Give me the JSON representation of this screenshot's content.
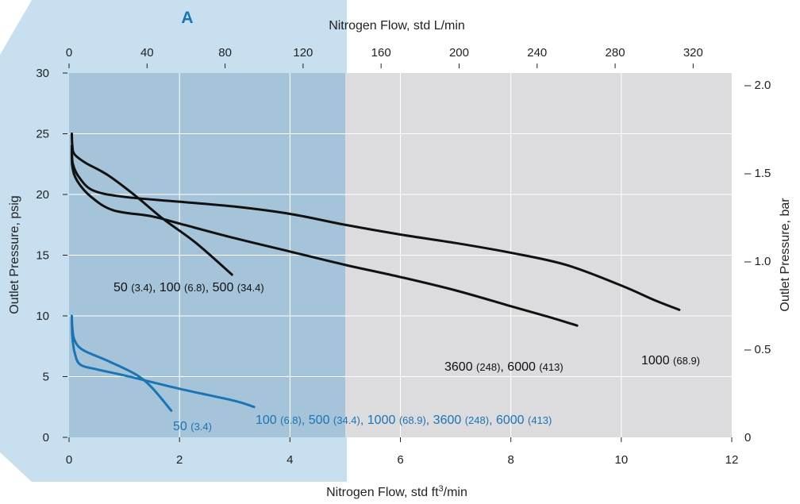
{
  "chart_data": {
    "type": "line",
    "region_label": "A",
    "x_top": {
      "label": "Nitrogen Flow, std L/min",
      "ticks": [
        "0",
        "40",
        "80",
        "120",
        "160",
        "200",
        "240",
        "280",
        "320"
      ],
      "tick_values_ft3": [
        0,
        1.4126,
        2.8252,
        4.2378,
        5.6504,
        7.063,
        8.4756,
        9.8882,
        11.3008
      ]
    },
    "x_bottom": {
      "label_prefix": "Nitrogen Flow, std ft",
      "label_sup": "3",
      "label_suffix": "/min",
      "ticks": [
        "0",
        "2",
        "4",
        "6",
        "8",
        "10",
        "12"
      ],
      "tick_values": [
        0,
        2,
        4,
        6,
        8,
        10,
        12
      ],
      "range": [
        0,
        12
      ]
    },
    "y_left": {
      "label": "Outlet Pressure, psig",
      "ticks": [
        "0",
        "5",
        "10",
        "15",
        "20",
        "25",
        "30"
      ],
      "tick_values": [
        0,
        5,
        10,
        15,
        20,
        25,
        30
      ],
      "range": [
        0,
        30
      ]
    },
    "y_right": {
      "label": "Outlet Pressure, bar",
      "ticks": [
        "0",
        "– 0.5",
        "– 1.0",
        "– 1.5",
        "– 2.0"
      ],
      "tick_values_psig": [
        0,
        7.25,
        14.5,
        21.76,
        29.01
      ]
    },
    "shaded_region_x_max": 5.0,
    "series": [
      {
        "color": "#111111",
        "points": [
          [
            0.05,
            25.0
          ],
          [
            0.06,
            24.0
          ],
          [
            0.1,
            23.3
          ],
          [
            0.3,
            22.6
          ],
          [
            0.7,
            21.6
          ],
          [
            1.2,
            19.9
          ],
          [
            1.7,
            18.0
          ],
          [
            2.3,
            16.0
          ],
          [
            2.95,
            13.4
          ]
        ]
      },
      {
        "color": "#111111",
        "points": [
          [
            0.05,
            24.0
          ],
          [
            0.07,
            22.5
          ],
          [
            0.2,
            21.3
          ],
          [
            0.45,
            20.3
          ],
          [
            1.0,
            19.8
          ],
          [
            2.0,
            19.4
          ],
          [
            3.0,
            19.0
          ],
          [
            4.0,
            18.4
          ],
          [
            5.0,
            17.5
          ],
          [
            6.0,
            16.7
          ],
          [
            7.0,
            16.0
          ],
          [
            8.0,
            15.2
          ],
          [
            9.0,
            14.2
          ],
          [
            10.0,
            12.5
          ],
          [
            10.6,
            11.3
          ],
          [
            11.05,
            10.5
          ]
        ]
      },
      {
        "color": "#111111",
        "points": [
          [
            0.05,
            24.0
          ],
          [
            0.06,
            22.3
          ],
          [
            0.15,
            21.1
          ],
          [
            0.4,
            19.8
          ],
          [
            0.8,
            18.7
          ],
          [
            1.5,
            18.2
          ],
          [
            2.0,
            17.6
          ],
          [
            3.0,
            16.4
          ],
          [
            4.0,
            15.3
          ],
          [
            5.0,
            14.2
          ],
          [
            6.0,
            13.2
          ],
          [
            7.0,
            12.1
          ],
          [
            8.0,
            10.8
          ],
          [
            8.7,
            9.9
          ],
          [
            9.2,
            9.2
          ]
        ]
      },
      {
        "color": "#1b74b4",
        "points": [
          [
            0.05,
            10.0
          ],
          [
            0.06,
            9.0
          ],
          [
            0.1,
            8.0
          ],
          [
            0.25,
            7.2
          ],
          [
            0.7,
            6.3
          ],
          [
            1.2,
            5.2
          ],
          [
            1.5,
            4.1
          ],
          [
            1.85,
            2.2
          ]
        ]
      },
      {
        "color": "#1b74b4",
        "points": [
          [
            0.05,
            9.8
          ],
          [
            0.06,
            8.3
          ],
          [
            0.1,
            7.0
          ],
          [
            0.2,
            6.0
          ],
          [
            0.5,
            5.6
          ],
          [
            1.0,
            5.1
          ],
          [
            2.0,
            4.0
          ],
          [
            3.0,
            3.0
          ],
          [
            3.35,
            2.5
          ]
        ]
      }
    ],
    "labels": {
      "black_a": [
        {
          "t": "50 ",
          "sm": false
        },
        {
          "t": "(3.4)",
          "sm": true
        },
        {
          "t": ", 100 ",
          "sm": false
        },
        {
          "t": "(6.8)",
          "sm": true
        },
        {
          "t": ", 500 ",
          "sm": false
        },
        {
          "t": "(34.4)",
          "sm": true
        }
      ],
      "black_b": [
        {
          "t": "3600 ",
          "sm": false
        },
        {
          "t": "(248)",
          "sm": true
        },
        {
          "t": ", 6000 ",
          "sm": false
        },
        {
          "t": "(413)",
          "sm": true
        }
      ],
      "black_c": [
        {
          "t": "1000 ",
          "sm": false
        },
        {
          "t": "(68.9)",
          "sm": true
        }
      ],
      "blue_a": [
        {
          "t": "50 ",
          "sm": false
        },
        {
          "t": "(3.4)",
          "sm": true
        }
      ],
      "blue_b": [
        {
          "t": "100 ",
          "sm": false
        },
        {
          "t": "(6.8)",
          "sm": true
        },
        {
          "t": ", 500 ",
          "sm": false
        },
        {
          "t": "(34.4)",
          "sm": true
        },
        {
          "t": ", 1000 ",
          "sm": false
        },
        {
          "t": "(68.9)",
          "sm": true
        },
        {
          "t": ", 3600 ",
          "sm": false
        },
        {
          "t": "(248)",
          "sm": true
        },
        {
          "t": ", 6000 ",
          "sm": false
        },
        {
          "t": "(413)",
          "sm": true
        }
      ]
    },
    "grid": true,
    "colors": {
      "plot_bg": "#dcdcde",
      "shade": "#a5c4d9",
      "panel": "#c7dfee",
      "black": "#111111",
      "blue": "#1b74b4"
    }
  }
}
